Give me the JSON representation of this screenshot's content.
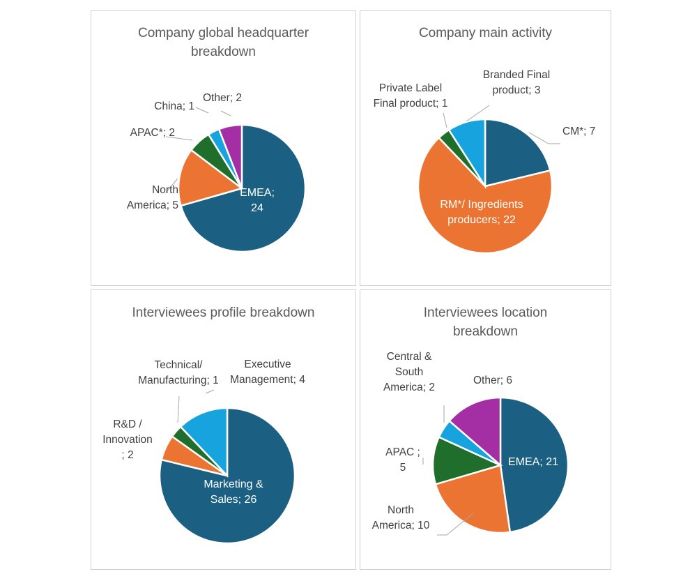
{
  "colors": {
    "blue": "#1b5f82",
    "orange": "#ec7432",
    "green": "#1f6e2b",
    "cyan": "#17a3dd",
    "purple": "#a42ea3",
    "leader": "#a6a6a6"
  },
  "charts": [
    {
      "title": "Company global headquarter\nbreakdown",
      "chart_data": {
        "type": "pie",
        "title": "Company global headquarter breakdown",
        "slices": [
          {
            "label": "EMEA",
            "value": 24,
            "color": "#1b5f82",
            "text": "EMEA;\n24"
          },
          {
            "label": "North America",
            "value": 5,
            "color": "#ec7432",
            "text": "North\nAmerica; 5"
          },
          {
            "label": "APAC*",
            "value": 2,
            "color": "#1f6e2b",
            "text": "APAC*; 2"
          },
          {
            "label": "China",
            "value": 1,
            "color": "#17a3dd",
            "text": "China; 1"
          },
          {
            "label": "Other",
            "value": 2,
            "color": "#a42ea3",
            "text": "Other; 2"
          }
        ]
      }
    },
    {
      "title": "Company main activity",
      "chart_data": {
        "type": "pie",
        "title": "Company main activity",
        "slices": [
          {
            "label": "CM*",
            "value": 7,
            "color": "#1b5f82",
            "text": "CM*; 7"
          },
          {
            "label": "RM*/ Ingredients producers",
            "value": 22,
            "color": "#ec7432",
            "text": "RM*/ Ingredients\nproducers; 22"
          },
          {
            "label": "Private Label Final product",
            "value": 1,
            "color": "#1f6e2b",
            "text": "Private Label\nFinal product; 1"
          },
          {
            "label": "Branded Final product",
            "value": 3,
            "color": "#17a3dd",
            "text": "Branded Final\nproduct; 3"
          }
        ]
      }
    },
    {
      "title": "Interviewees profile breakdown",
      "chart_data": {
        "type": "pie",
        "title": "Interviewees profile breakdown",
        "slices": [
          {
            "label": "Marketing & Sales",
            "value": 26,
            "color": "#1b5f82",
            "text": "Marketing &\nSales; 26"
          },
          {
            "label": "R&D / Innovation",
            "value": 2,
            "color": "#ec7432",
            "text": "R&D /\nInnovation\n; 2"
          },
          {
            "label": "Technical/ Manufacturing",
            "value": 1,
            "color": "#1f6e2b",
            "text": "Technical/\nManufacturing; 1"
          },
          {
            "label": "Executive Management",
            "value": 4,
            "color": "#17a3dd",
            "text": "Executive\nManagement; 4"
          }
        ]
      }
    },
    {
      "title": "Interviewees location\nbreakdown",
      "chart_data": {
        "type": "pie",
        "title": "Interviewees location breakdown",
        "slices": [
          {
            "label": "EMEA",
            "value": 21,
            "color": "#1b5f82",
            "text": "EMEA; 21"
          },
          {
            "label": "North America",
            "value": 10,
            "color": "#ec7432",
            "text": "North\nAmerica; 10"
          },
          {
            "label": "APAC",
            "value": 5,
            "color": "#1f6e2b",
            "text": "APAC ;\n5"
          },
          {
            "label": "Central & South America",
            "value": 2,
            "color": "#17a3dd",
            "text": "Central &\nSouth\nAmerica; 2"
          },
          {
            "label": "Other",
            "value": 6,
            "color": "#a42ea3",
            "text": "Other; 6"
          }
        ]
      }
    }
  ]
}
